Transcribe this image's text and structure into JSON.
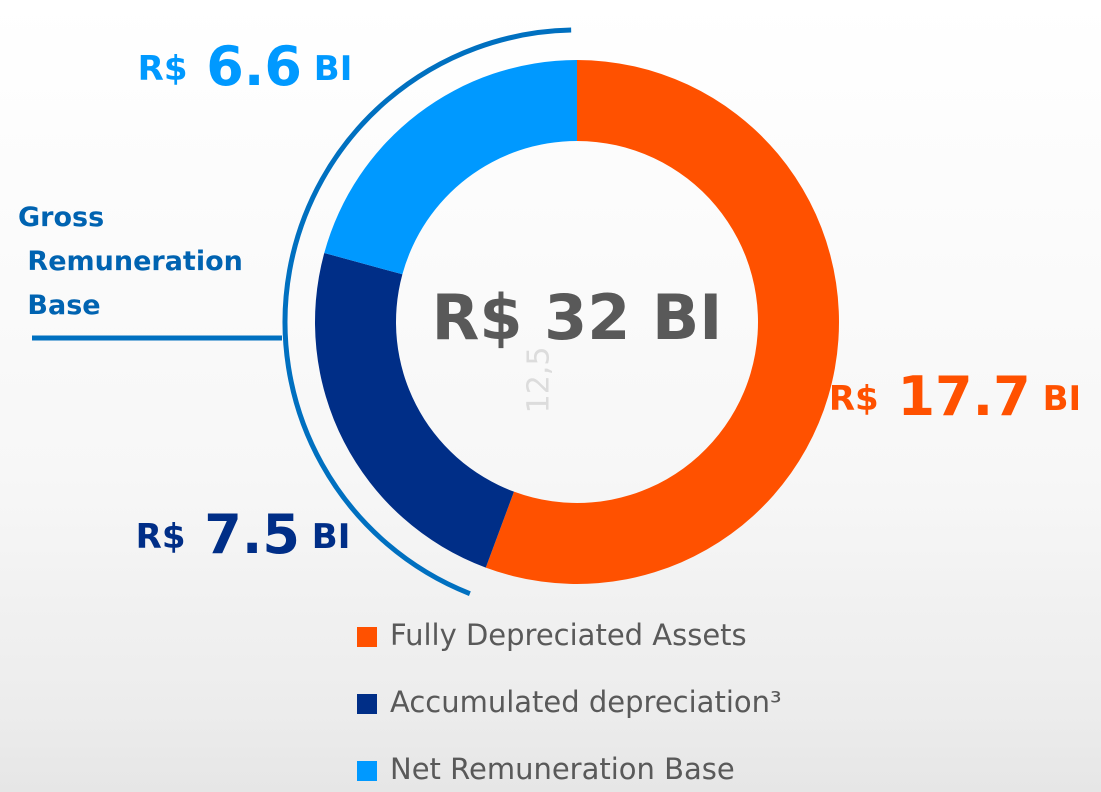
{
  "chart_data": {
    "type": "pie",
    "donut": true,
    "center_label": "R$ 32 BI",
    "annotation": "Gross Remuneration Base",
    "watermark": "12,5",
    "categories": [
      "Fully Depreciated Assets",
      "Accumulated depreciation³",
      "Net Remuneration Base"
    ],
    "values": [
      17.7,
      7.5,
      6.6
    ],
    "value_labels": [
      "R$ 17.7 BI",
      "R$ 7.5 BI",
      "R$ 6.6 BI"
    ],
    "colors": [
      "#ff5100",
      "#002e87",
      "#0099ff"
    ]
  }
}
